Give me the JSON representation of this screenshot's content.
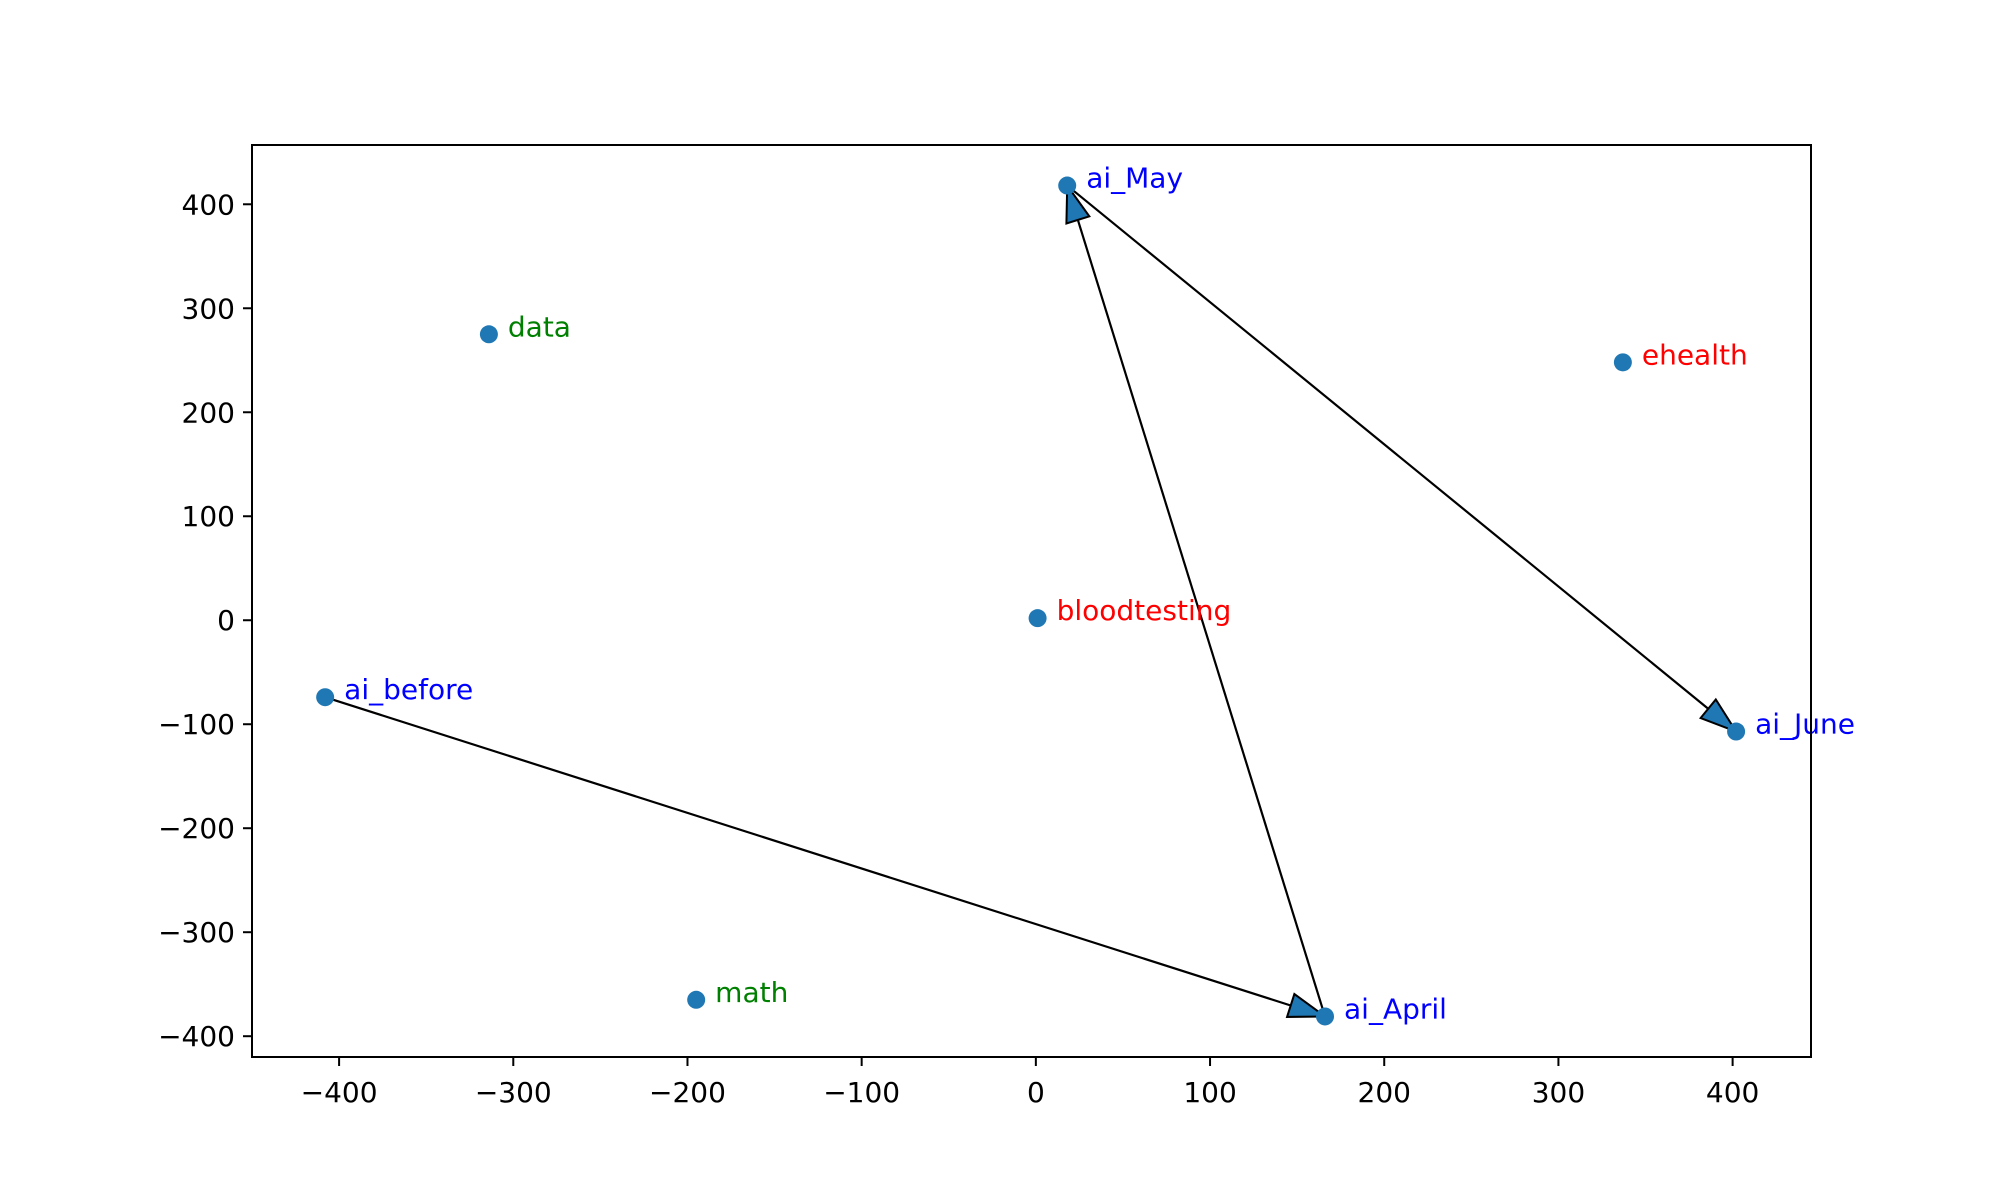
{
  "chart_data": {
    "type": "scatter",
    "title": "",
    "xlabel": "",
    "ylabel": "",
    "xlim": [
      -450,
      445
    ],
    "ylim": [
      -420,
      457
    ],
    "x_ticks": [
      -400,
      -300,
      -200,
      -100,
      0,
      100,
      200,
      300,
      400
    ],
    "y_ticks": [
      -400,
      -300,
      -200,
      -100,
      0,
      100,
      200,
      300,
      400
    ],
    "x_tick_labels": [
      "−400",
      "−300",
      "−200",
      "−100",
      "0",
      "100",
      "200",
      "300",
      "400"
    ],
    "y_tick_labels": [
      "−400",
      "−300",
      "−200",
      "−100",
      "0",
      "100",
      "200",
      "300",
      "400"
    ],
    "grid": false,
    "legend": "none",
    "marker_color": "#1f77b4",
    "points": [
      {
        "label": "ai_May",
        "x": 18,
        "y": 418,
        "color": "#0000ff"
      },
      {
        "label": "data",
        "x": -314,
        "y": 275,
        "color": "#008000"
      },
      {
        "label": "ehealth",
        "x": 337,
        "y": 248,
        "color": "#ff0000"
      },
      {
        "label": "bloodtesting",
        "x": 1,
        "y": 2,
        "color": "#ff0000"
      },
      {
        "label": "ai_before",
        "x": -408,
        "y": -74,
        "color": "#0000ff"
      },
      {
        "label": "ai_June",
        "x": 402,
        "y": -107,
        "color": "#0000ff"
      },
      {
        "label": "math",
        "x": -195,
        "y": -365,
        "color": "#008000"
      },
      {
        "label": "ai_April",
        "x": 166,
        "y": -381,
        "color": "#0000ff"
      }
    ],
    "arrows": [
      {
        "from": "ai_before",
        "to": "ai_April"
      },
      {
        "from": "ai_April",
        "to": "ai_May"
      },
      {
        "from": "ai_May",
        "to": "ai_June"
      }
    ],
    "arrow_fill": "#1f77b4",
    "arrow_stroke": "#000000"
  }
}
